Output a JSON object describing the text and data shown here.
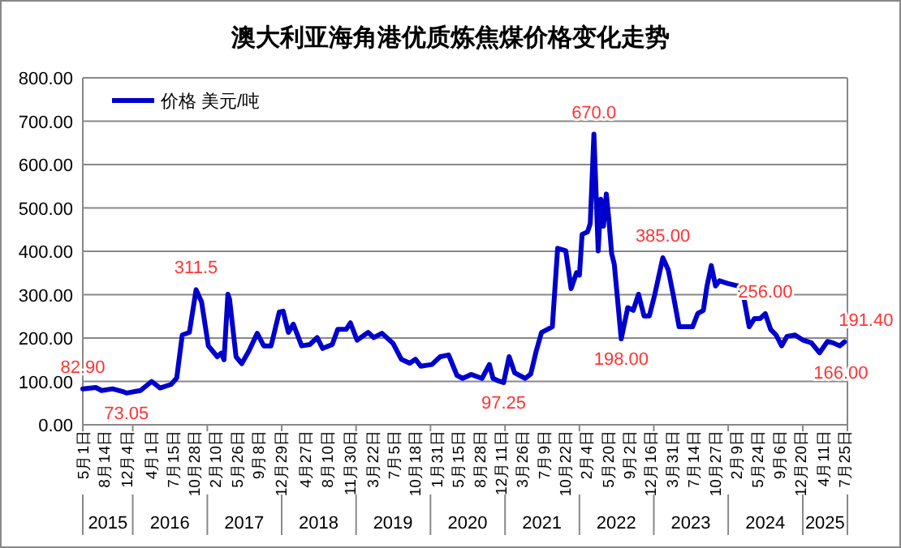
{
  "chart_data": {
    "type": "line",
    "title": "澳大利亚海角港优质炼焦煤价格变化走势",
    "xlim": [
      "2015-05-01",
      "2025-08-08"
    ],
    "xticks": [
      {
        "value": "2015-05-01",
        "label": "5月1日"
      },
      {
        "value": "2015-08-14",
        "label": "8月14日"
      },
      {
        "value": "2015-12-04",
        "label": "12月4日"
      },
      {
        "value": "2016-04-01",
        "label": "4月1日"
      },
      {
        "value": "2016-07-15",
        "label": "7月15日"
      },
      {
        "value": "2016-10-28",
        "label": "10月28日"
      },
      {
        "value": "2017-02-10",
        "label": "2月10日"
      },
      {
        "value": "2017-05-26",
        "label": "5月26日"
      },
      {
        "value": "2017-09-08",
        "label": "9月8日"
      },
      {
        "value": "2017-12-29",
        "label": "12月29日"
      },
      {
        "value": "2018-04-27",
        "label": "4月27日"
      },
      {
        "value": "2018-08-10",
        "label": "8月10日"
      },
      {
        "value": "2018-11-30",
        "label": "11月30日"
      },
      {
        "value": "2019-03-22",
        "label": "3月22日"
      },
      {
        "value": "2019-07-05",
        "label": "7月5日"
      },
      {
        "value": "2019-10-18",
        "label": "10月18日"
      },
      {
        "value": "2020-01-31",
        "label": "1月31日"
      },
      {
        "value": "2020-05-15",
        "label": "5月15日"
      },
      {
        "value": "2020-08-28",
        "label": "8月28日"
      },
      {
        "value": "2020-12-11",
        "label": "12月11日"
      },
      {
        "value": "2021-03-26",
        "label": "3月26日"
      },
      {
        "value": "2021-07-09",
        "label": "7月9日"
      },
      {
        "value": "2021-10-22",
        "label": "10月22日"
      },
      {
        "value": "2022-02-04",
        "label": "2月4日"
      },
      {
        "value": "2022-05-20",
        "label": "5月20日"
      },
      {
        "value": "2022-09-02",
        "label": "9月2日"
      },
      {
        "value": "2022-12-16",
        "label": "12月16日"
      },
      {
        "value": "2023-03-31",
        "label": "3月31日"
      },
      {
        "value": "2023-07-14",
        "label": "7月14日"
      },
      {
        "value": "2023-10-27",
        "label": "10月27日"
      },
      {
        "value": "2024-02-09",
        "label": "2月9日"
      },
      {
        "value": "2024-05-24",
        "label": "5月24日"
      },
      {
        "value": "2024-09-06",
        "label": "9月6日"
      },
      {
        "value": "2024-12-20",
        "label": "12月20日"
      },
      {
        "value": "2025-04-11",
        "label": "4月11日"
      },
      {
        "value": "2025-07-25",
        "label": "7月25日"
      }
    ],
    "x2lim": [
      "2015-05-01",
      "2025-08-08"
    ],
    "x2ticks": [
      {
        "value": "2015-05-01",
        "label": null
      },
      {
        "value": "2015-09-01",
        "label": "2015"
      },
      {
        "value": "2016-01-01",
        "label": null
      },
      {
        "value": "2016-07-01",
        "label": "2016"
      },
      {
        "value": "2017-01-01",
        "label": null
      },
      {
        "value": "2017-07-01",
        "label": "2017"
      },
      {
        "value": "2018-01-01",
        "label": null
      },
      {
        "value": "2018-07-01",
        "label": "2018"
      },
      {
        "value": "2019-01-01",
        "label": null
      },
      {
        "value": "2019-07-01",
        "label": "2019"
      },
      {
        "value": "2020-01-01",
        "label": null
      },
      {
        "value": "2020-07-01",
        "label": "2020"
      },
      {
        "value": "2021-01-01",
        "label": null
      },
      {
        "value": "2021-07-01",
        "label": "2021"
      },
      {
        "value": "2022-01-01",
        "label": null
      },
      {
        "value": "2022-07-01",
        "label": "2022"
      },
      {
        "value": "2023-01-01",
        "label": null
      },
      {
        "value": "2023-07-01",
        "label": "2023"
      },
      {
        "value": "2024-01-01",
        "label": null
      },
      {
        "value": "2024-07-01",
        "label": "2024"
      },
      {
        "value": "2025-01-01",
        "label": null
      },
      {
        "value": "2025-04-20",
        "label": "2025"
      },
      {
        "value": "2025-08-08",
        "label": null
      }
    ],
    "ylim": [
      0,
      800
    ],
    "yticks": [
      {
        "value": 0,
        "label": "0.00"
      },
      {
        "value": 100,
        "label": "100.00"
      },
      {
        "value": 200,
        "label": "200.00"
      },
      {
        "value": 300,
        "label": "300.00"
      },
      {
        "value": 400,
        "label": "400.00"
      },
      {
        "value": 500,
        "label": "500.00"
      },
      {
        "value": 600,
        "label": "600.00"
      },
      {
        "value": 700,
        "label": "700.00"
      },
      {
        "value": 800,
        "label": "800.00"
      }
    ],
    "grid": "y",
    "legend": "top left",
    "marker": "none",
    "line_style": "solid",
    "series": [
      {
        "name": "价格 美元/吨",
        "color": "#0000cc",
        "x": [
          "2015-05-01",
          "2015-07-04",
          "2015-08-01",
          "2015-09-24",
          "2015-11-18",
          "2015-12-01",
          "2016-02-08",
          "2016-04-03",
          "2016-05-14",
          "2016-07-07",
          "2016-08-04",
          "2016-08-31",
          "2016-10-05",
          "2016-11-07",
          "2016-12-04",
          "2017-01-06",
          "2017-02-19",
          "2017-03-10",
          "2017-03-24",
          "2017-04-12",
          "2017-04-20",
          "2017-05-22",
          "2017-06-19",
          "2017-07-24",
          "2017-09-03",
          "2017-10-05",
          "2017-11-10",
          "2017-12-20",
          "2018-01-08",
          "2018-02-03",
          "2018-02-27",
          "2018-04-09",
          "2018-05-19",
          "2018-06-24",
          "2018-07-21",
          "2018-09-06",
          "2018-10-03",
          "2018-11-13",
          "2018-12-04",
          "2019-01-06",
          "2019-03-01",
          "2019-03-29",
          "2019-05-08",
          "2019-07-01",
          "2019-08-11",
          "2019-09-21",
          "2019-10-19",
          "2019-11-15",
          "2020-01-08",
          "2020-02-18",
          "2020-03-30",
          "2020-05-10",
          "2020-06-07",
          "2020-07-18",
          "2020-09-10",
          "2020-10-16",
          "2020-11-03",
          "2020-11-30",
          "2020-12-25",
          "2021-01-21",
          "2021-02-17",
          "2021-04-10",
          "2021-05-07",
          "2021-06-03",
          "2021-06-29",
          "2021-08-21",
          "2021-09-16",
          "2021-10-26",
          "2021-11-21",
          "2021-12-18",
          "2022-01-01",
          "2022-01-14",
          "2022-02-10",
          "2022-02-23",
          "2022-03-13",
          "2022-04-03",
          "2022-04-16",
          "2022-04-29",
          "2022-05-13",
          "2022-05-26",
          "2022-06-08",
          "2022-06-21",
          "2022-07-25",
          "2022-08-26",
          "2022-09-22",
          "2022-10-18",
          "2022-11-14",
          "2022-12-10",
          "2023-01-06",
          "2023-02-14",
          "2023-03-13",
          "2023-04-08",
          "2023-05-05",
          "2023-06-13",
          "2023-07-10",
          "2023-08-05",
          "2023-09-01",
          "2023-09-19",
          "2023-10-10",
          "2023-10-31",
          "2023-11-19",
          "2023-12-29",
          "2024-02-20",
          "2024-03-17",
          "2024-04-13",
          "2024-05-09",
          "2024-06-05",
          "2024-07-01",
          "2024-07-27",
          "2024-08-23",
          "2024-09-19",
          "2024-10-16",
          "2024-11-24",
          "2025-01-03",
          "2025-02-12",
          "2025-03-24",
          "2025-05-02",
          "2025-05-29",
          "2025-07-01",
          "2025-07-25"
        ],
        "values": [
          82.9,
          86,
          79,
          83,
          76,
          73.05,
          79,
          100,
          85,
          93,
          108,
          207,
          213,
          311.5,
          283,
          182,
          157,
          165,
          150,
          301,
          290,
          157,
          141,
          170,
          211,
          182,
          182,
          260,
          262,
          213,
          232,
          182,
          185,
          201,
          176,
          185,
          220,
          220,
          235,
          195,
          213,
          201,
          211,
          188,
          151,
          142,
          151,
          135,
          139,
          157,
          161,
          114,
          107,
          116,
          107,
          139,
          107,
          101,
          97.25,
          157,
          120,
          107,
          117,
          170,
          213,
          226,
          407,
          401,
          314,
          351,
          345,
          439,
          445,
          464,
          670,
          401,
          520,
          458,
          532,
          470,
          395,
          370,
          198,
          270,
          264,
          301,
          251,
          251,
          301,
          385,
          357,
          295,
          226,
          226,
          226,
          257,
          264,
          320,
          367,
          320,
          332,
          326,
          320,
          295,
          226,
          245,
          245,
          256,
          220,
          207,
          182,
          204,
          207,
          195,
          189,
          166,
          192,
          189,
          182,
          191.4
        ]
      }
    ],
    "annotations": [
      {
        "text": "82.90",
        "x": "2015-05-01",
        "y": 82.9
      },
      {
        "text": "73.05",
        "x": "2015-12-01",
        "y": 73.05
      },
      {
        "text": "311.5",
        "x": "2016-11-07",
        "y": 311.5
      },
      {
        "text": "97.25",
        "x": "2020-12-25",
        "y": 97.25
      },
      {
        "text": "670.0",
        "x": "2022-03-13",
        "y": 670
      },
      {
        "text": "198.00",
        "x": "2022-07-25",
        "y": 198
      },
      {
        "text": "385.00",
        "x": "2023-02-14",
        "y": 385
      },
      {
        "text": "256.00",
        "x": "2024-07-01",
        "y": 256
      },
      {
        "text": "166.00",
        "x": "2025-03-24",
        "y": 166
      },
      {
        "text": "191.40",
        "x": "2025-07-25",
        "y": 191.4
      }
    ]
  }
}
